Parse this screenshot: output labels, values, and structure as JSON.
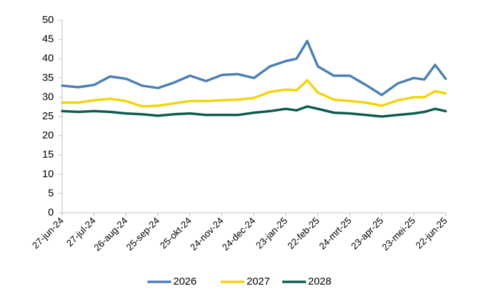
{
  "chart_data": {
    "type": "line",
    "title": "",
    "xlabel": "",
    "ylabel": "",
    "ylim": [
      0,
      50
    ],
    "yticks": [
      0,
      5,
      10,
      15,
      20,
      25,
      30,
      35,
      40,
      45,
      50
    ],
    "grid": false,
    "legend_position": "bottom",
    "x_tick_labels": [
      "27-jun-24",
      "27-jul-24",
      "26-aug-24",
      "25-sep-24",
      "25-okt-24",
      "24-nov-24",
      "24-dec-24",
      "23-jan-25",
      "22-feb-25",
      "24-mrt-25",
      "23-apr-25",
      "23-mei-25",
      "22-jun-25"
    ],
    "x": [
      "27-jun-24",
      "12-jul-24",
      "27-jul-24",
      "11-aug-24",
      "26-aug-24",
      "10-sep-24",
      "25-sep-24",
      "10-okt-24",
      "25-okt-24",
      "9-nov-24",
      "24-nov-24",
      "9-dec-24",
      "24-dec-24",
      "8-jan-25",
      "23-jan-25",
      "7-feb-25",
      "13-feb-25",
      "22-feb-25",
      "9-mrt-25",
      "24-mrt-25",
      "8-apr-25",
      "23-apr-25",
      "8-mei-25",
      "23-mei-25",
      "7-jun-25",
      "15-jun-25",
      "22-jun-25"
    ],
    "series": [
      {
        "name": "2026",
        "color": "#4a7fb5",
        "values": [
          33.0,
          32.6,
          33.2,
          35.4,
          34.8,
          33.0,
          32.4,
          33.8,
          35.6,
          34.2,
          35.8,
          36.0,
          35.0,
          38.0,
          39.4,
          40.0,
          44.6,
          38.0,
          35.6,
          35.6,
          33.2,
          30.6,
          33.6,
          35.0,
          34.6,
          38.4,
          34.8
        ]
      },
      {
        "name": "2027",
        "color": "#f2d40a",
        "values": [
          28.6,
          28.6,
          29.2,
          29.6,
          29.0,
          27.6,
          27.8,
          28.4,
          29.0,
          29.0,
          29.2,
          29.4,
          29.8,
          31.4,
          32.0,
          31.8,
          34.4,
          31.2,
          29.4,
          29.0,
          28.6,
          27.8,
          29.2,
          30.0,
          30.0,
          31.6,
          31.0
        ]
      },
      {
        "name": "2028",
        "color": "#0c5a52",
        "values": [
          26.4,
          26.2,
          26.4,
          26.2,
          25.8,
          25.6,
          25.2,
          25.6,
          25.8,
          25.4,
          25.4,
          25.4,
          26.0,
          26.4,
          27.0,
          26.6,
          27.6,
          27.0,
          26.0,
          25.8,
          25.4,
          25.0,
          25.4,
          25.8,
          26.2,
          27.0,
          26.4
        ]
      }
    ]
  }
}
